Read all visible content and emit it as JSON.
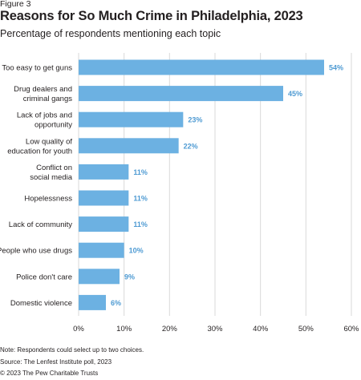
{
  "figure_label": "Figure 3",
  "notes": {
    "note": "Note: Respondents could select up to two choices.",
    "source": "Source: The Lenfest Institute poll, 2023",
    "copyright": "© 2023 The Pew Charitable Trusts"
  },
  "colors": {
    "bar": "#6cb1e2",
    "value_label": "#4f9bd3",
    "text": "#231f20",
    "grid": "#d9d9d9"
  },
  "chart_data": {
    "type": "bar",
    "orientation": "horizontal",
    "title": "Reasons for So Much Crime in Philadelphia, 2023",
    "subtitle": "Percentage of respondents mentioning each topic",
    "categories": [
      [
        "Too easy to get guns"
      ],
      [
        "Drug dealers and",
        "criminal gangs"
      ],
      [
        "Lack of jobs and",
        "opportunity"
      ],
      [
        "Low quality of",
        "education for youth"
      ],
      [
        "Conflict on",
        "social media"
      ],
      [
        "Hopelessness"
      ],
      [
        "Lack of community"
      ],
      [
        "People who use drugs"
      ],
      [
        "Police don't care"
      ],
      [
        "Domestic violence"
      ]
    ],
    "values": [
      54,
      45,
      23,
      22,
      11,
      11,
      11,
      10,
      9,
      6
    ],
    "value_labels": [
      "54%",
      "45%",
      "23%",
      "22%",
      "11%",
      "11%",
      "11%",
      "10%",
      "9%",
      "6%"
    ],
    "xlim": [
      0,
      60
    ],
    "xticks": [
      0,
      10,
      20,
      30,
      40,
      50,
      60
    ],
    "xtick_labels": [
      "0%",
      "10%",
      "20%",
      "30%",
      "40%",
      "50%",
      "60%"
    ],
    "xlabel": "",
    "ylabel": "",
    "grid": true,
    "legend": "none"
  }
}
